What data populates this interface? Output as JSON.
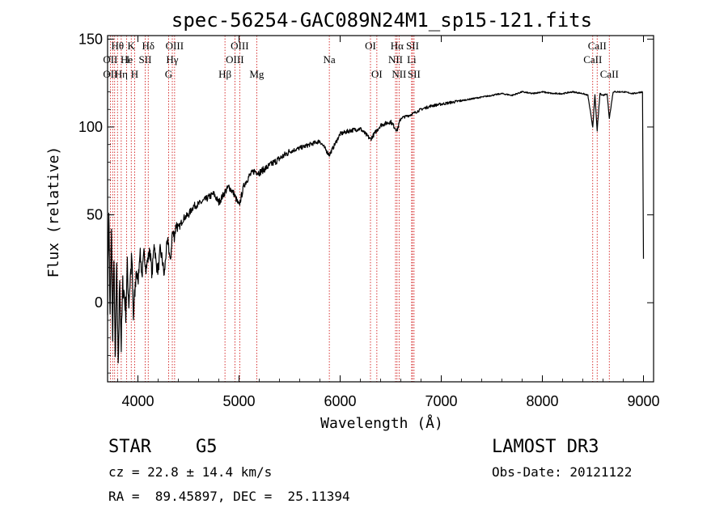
{
  "chart_data": {
    "type": "line",
    "title": "spec-56254-GAC089N24M1_sp15-121.fits",
    "xlabel": "Wavelength (Å)",
    "ylabel": "Flux (relative)",
    "xlim": [
      3700,
      9100
    ],
    "ylim": [
      -45,
      152
    ],
    "x_ticks": [
      4000,
      5000,
      6000,
      7000,
      8000,
      9000
    ],
    "y_ticks": [
      0,
      50,
      100,
      150
    ],
    "series": [
      {
        "name": "flux",
        "x": [
          3700,
          3712,
          3725,
          3738,
          3750,
          3762,
          3775,
          3790,
          3805,
          3820,
          3835,
          3850,
          3865,
          3880,
          3895,
          3910,
          3925,
          3940,
          3955,
          3970,
          3985,
          4000,
          4020,
          4040,
          4060,
          4080,
          4100,
          4120,
          4140,
          4160,
          4180,
          4200,
          4220,
          4240,
          4260,
          4280,
          4300,
          4320,
          4340,
          4360,
          4380,
          4400,
          4450,
          4500,
          4550,
          4600,
          4650,
          4700,
          4750,
          4800,
          4861,
          4900,
          4950,
          5000,
          5050,
          5100,
          5150,
          5200,
          5300,
          5400,
          5500,
          5600,
          5700,
          5800,
          5893,
          6000,
          6100,
          6200,
          6300,
          6400,
          6500,
          6563,
          6600,
          6700,
          6800,
          6900,
          7000,
          7100,
          7200,
          7300,
          7400,
          7500,
          7600,
          7700,
          7800,
          7900,
          8000,
          8100,
          8200,
          8300,
          8400,
          8450,
          8498,
          8520,
          8542,
          8570,
          8600,
          8640,
          8662,
          8700,
          8800,
          8900,
          8990,
          9000
        ],
        "values": [
          0,
          55,
          -10,
          40,
          -20,
          30,
          -35,
          20,
          -40,
          15,
          -25,
          10,
          5,
          -5,
          20,
          0,
          15,
          25,
          -10,
          5,
          20,
          10,
          30,
          15,
          28,
          20,
          25,
          30,
          15,
          35,
          22,
          18,
          30,
          25,
          15,
          30,
          35,
          22,
          40,
          38,
          45,
          42,
          48,
          50,
          55,
          56,
          58,
          60,
          62,
          57,
          63,
          66,
          62,
          55,
          67,
          72,
          75,
          74,
          78,
          82,
          86,
          88,
          90,
          92,
          84,
          96,
          98,
          99,
          93,
          101,
          103,
          98,
          105,
          107,
          110,
          112,
          113,
          114,
          115,
          116,
          117,
          118,
          119,
          118,
          120,
          119,
          120,
          119,
          119,
          120,
          119,
          118,
          100,
          118,
          98,
          119,
          118,
          119,
          105,
          120,
          120,
          119,
          120,
          25
        ]
      }
    ],
    "line_labels": [
      {
        "label": "Hθ",
        "wl": 3798,
        "row": 1
      },
      {
        "label": "OII",
        "wl": 3727,
        "row": 2
      },
      {
        "label": "OII",
        "wl": 3727,
        "row": 3
      },
      {
        "label": "He",
        "wl": 3889,
        "row": 2
      },
      {
        "label": "Hη",
        "wl": 3835,
        "row": 3
      },
      {
        "label": "K",
        "wl": 3934,
        "row": 1
      },
      {
        "label": "H",
        "wl": 3968,
        "row": 3
      },
      {
        "label": "I",
        "wl": 3900,
        "row": 2
      },
      {
        "label": "SII",
        "wl": 4072,
        "row": 2
      },
      {
        "label": "Hδ",
        "wl": 4102,
        "row": 1
      },
      {
        "label": "OIII",
        "wl": 4363,
        "row": 1
      },
      {
        "label": "Hγ",
        "wl": 4340,
        "row": 2
      },
      {
        "label": "G",
        "wl": 4304,
        "row": 3
      },
      {
        "label": "OIII",
        "wl": 5007,
        "row": 1
      },
      {
        "label": "OIII",
        "wl": 4959,
        "row": 2
      },
      {
        "label": "Hβ",
        "wl": 4861,
        "row": 3
      },
      {
        "label": "Mg",
        "wl": 5175,
        "row": 3
      },
      {
        "label": "Na",
        "wl": 5893,
        "row": 2
      },
      {
        "label": "OI",
        "wl": 6300,
        "row": 1
      },
      {
        "label": "OI",
        "wl": 6363,
        "row": 3
      },
      {
        "label": "Hα",
        "wl": 6563,
        "row": 1
      },
      {
        "label": "SII",
        "wl": 6716,
        "row": 1
      },
      {
        "label": "NII",
        "wl": 6548,
        "row": 2
      },
      {
        "label": "Li",
        "wl": 6707,
        "row": 2
      },
      {
        "label": "NII",
        "wl": 6583,
        "row": 3
      },
      {
        "label": "SII",
        "wl": 6731,
        "row": 3
      },
      {
        "label": "CaII",
        "wl": 8542,
        "row": 1
      },
      {
        "label": "CaII",
        "wl": 8498,
        "row": 2
      },
      {
        "label": "CaII",
        "wl": 8662,
        "row": 3
      }
    ],
    "line_wavelengths": [
      3727,
      3750,
      3770,
      3798,
      3835,
      3889,
      3934,
      3968,
      4072,
      4102,
      4304,
      4340,
      4363,
      4861,
      4959,
      5007,
      5175,
      5893,
      6300,
      6363,
      6548,
      6563,
      6583,
      6707,
      6716,
      6731,
      8498,
      8542,
      8662
    ],
    "colors": {
      "spectrum": "#000000",
      "lines": "#cc0000",
      "axes": "#000000"
    }
  },
  "info": {
    "object_class": "STAR",
    "subclass": "G5",
    "survey": "LAMOST DR3",
    "redshift": "cz = 22.8 ± 14.4 km/s",
    "obs_date": "Obs-Date: 20121122",
    "coords": "RA =  89.45897, DEC =  25.11394"
  }
}
